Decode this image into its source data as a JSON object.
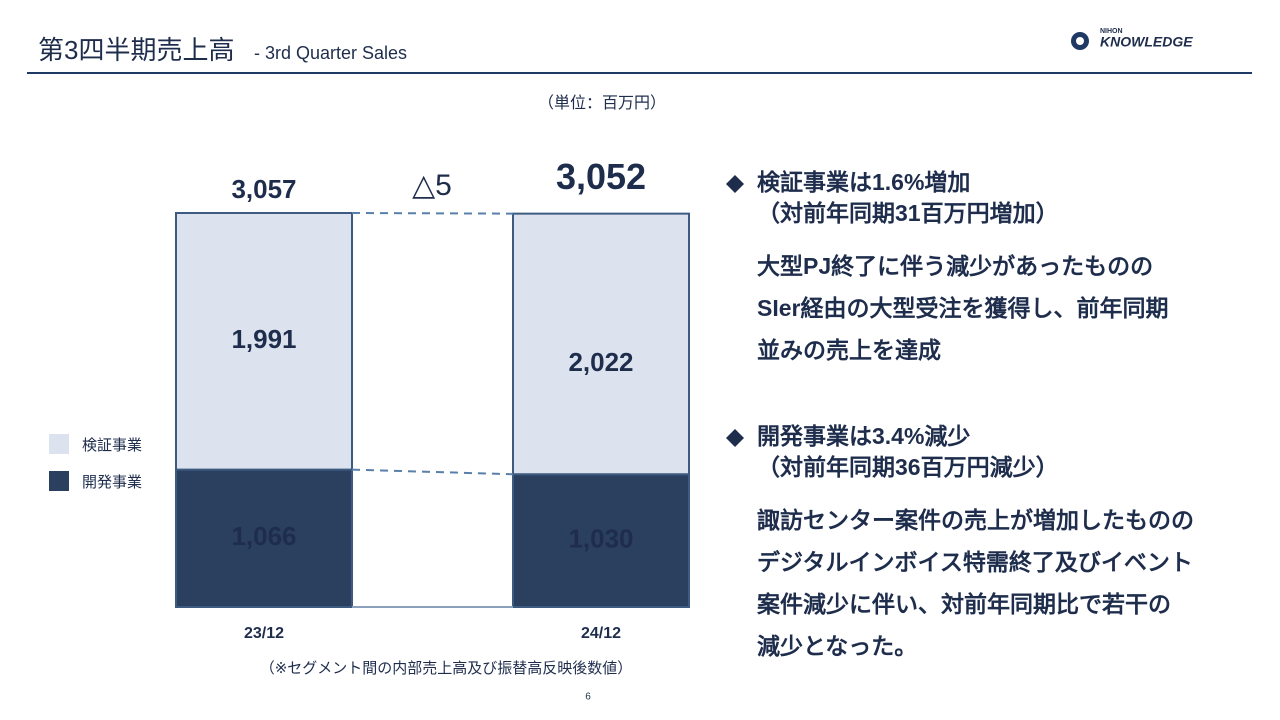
{
  "header": {
    "title": "第3四半期売上高",
    "subtitle": "- 3rd Quarter Sales",
    "logo_top": "NIHON",
    "logo_main": "KNOWLEDGE"
  },
  "chart_data": {
    "type": "stacked-bar",
    "unit": "（単位：百万円）",
    "categories": [
      "23/12",
      "24/12"
    ],
    "series": [
      {
        "name": "検証事業",
        "color": "#dce3ef",
        "values": [
          1991,
          2022
        ],
        "value_labels": [
          "1,991",
          "2,022"
        ]
      },
      {
        "name": "開発事業",
        "color": "#2b3f5e",
        "values": [
          1066,
          1030
        ],
        "value_labels": [
          "1,066",
          "1,030"
        ]
      }
    ],
    "totals": [
      3057,
      3052
    ],
    "total_labels": [
      "3,057",
      "3,052"
    ],
    "annotation": "△5",
    "note": "（※セグメント間の内部売上高及び振替高反映後数値）"
  },
  "notes": [
    {
      "heading": [
        "検証事業は1.6%増加",
        "（対前年同期31百万円増加）"
      ],
      "body": [
        "大型PJ終了に伴う減少があったものの",
        "SIer経由の大型受注を獲得し、前年同期",
        "並みの売上を達成"
      ]
    },
    {
      "heading": [
        "開発事業は3.4%減少",
        "（対前年同期36百万円減少）"
      ],
      "body": [
        "諏訪センター案件の売上が増加したものの",
        "デジタルインボイス特需終了及びイベント",
        "案件減少に伴い、対前年同期比で若干の",
        "減少となった。"
      ]
    }
  ],
  "page_number": "6"
}
